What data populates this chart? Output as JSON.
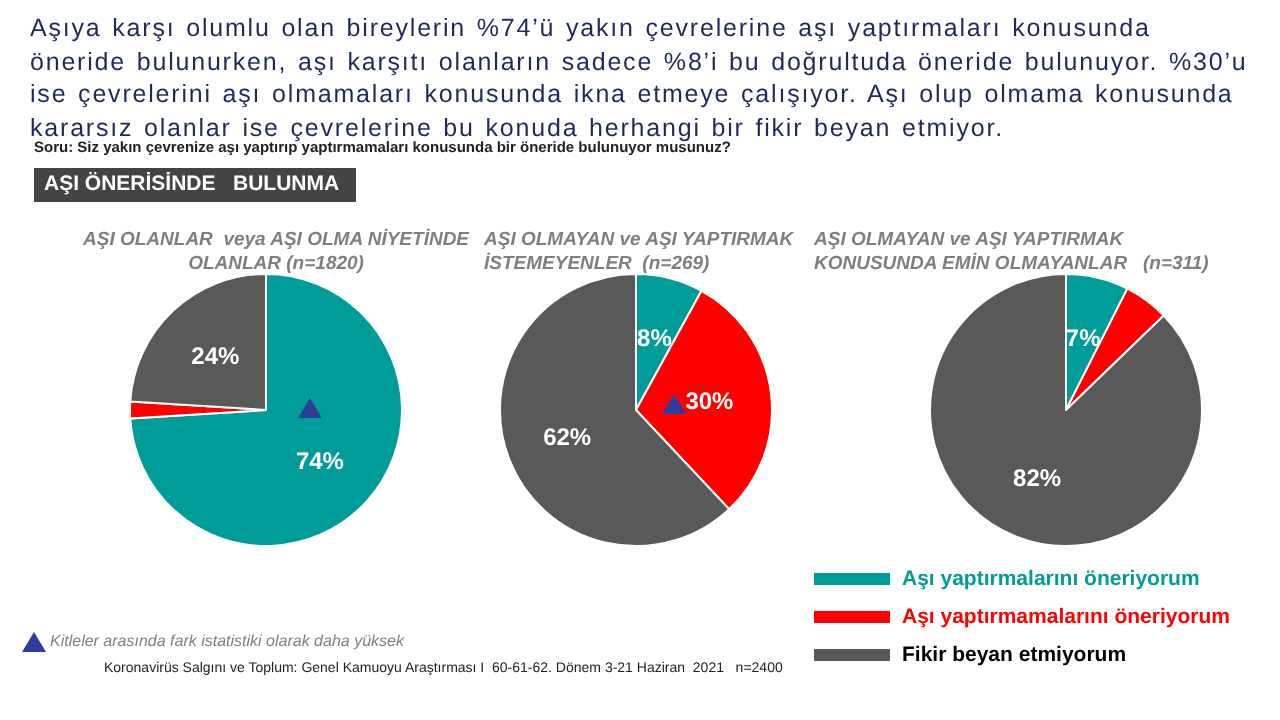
{
  "chart_data": [
    {
      "type": "pie",
      "title": "AŞI OLANLAR  veya AŞI OLMA NİYETİNDE\nOLANLAR (n=1820)",
      "categories": [
        null,
        null,
        null
      ],
      "values": [
        74,
        2,
        24
      ],
      "colors": [
        "#009c9a",
        "#ff0000",
        "#595959"
      ],
      "value_labels": [
        "74%",
        null,
        "24%"
      ],
      "annotations": [
        "Aşıya karşı olumlu olan bireylerin %74’ü yakın çevrelerine  aşı yaptırmaları konusunda öneride bulunurken, aşı karşıtı olanların sadece %8’i bu doğrultuda öneride bulunuyor. %30’u ise çevrelerini aşı olmamaları konusunda ikna etmeye çalışıyor. Aşı olup olmama konusunda kararsız olanlar ise çevrelerine  bu konuda herhangi bir fikir beyan etmiyor.",
        "Soru: Siz yakın  çevrenize aşı yaptırıp yaptırmamaları  konusunda bir öneride bulunuyor musunuz?",
        "AŞI ÖNERİSİNDE   BULUNMA",
        "Kitleler arasında fark istatistiki olarak daha  yüksek"
      ]
    },
    {
      "type": "pie",
      "title": "AŞI OLMAYAN ve AŞI YAPTIRMAK\nİSTEMEYENLER  (n=269)",
      "categories": [
        null,
        null,
        null
      ],
      "values": [
        8,
        30,
        62
      ],
      "colors": [
        "#009c9a",
        "#ff0000",
        "#595959"
      ],
      "value_labels": [
        "8%",
        "30%",
        "62%"
      ]
    },
    {
      "type": "pie",
      "title": "AŞI OLMAYAN ve AŞI YAPTIRMAK\nKONUSUNDA EMİN OLMAYANLAR   (n=311)",
      "categories": [
        "Aşı yaptırmalarını öneriyorum",
        "Aşı yaptırmamalarını öneriyorum",
        "Fikir beyan etmiyorum"
      ],
      "values": [
        7,
        5,
        82
      ],
      "colors": [
        "#009c9a",
        "#ff0000",
        "#595959"
      ],
      "value_labels": [
        "7%",
        null,
        "82%"
      ],
      "legend": "bottom left",
      "annotations": [
        "Koronavirüs Salgını ve Toplum: Genel Kamuoyu Araştırması I  60-61-62. Dönem 3-21 Haziran  2021   n=2400"
      ]
    }
  ]
}
